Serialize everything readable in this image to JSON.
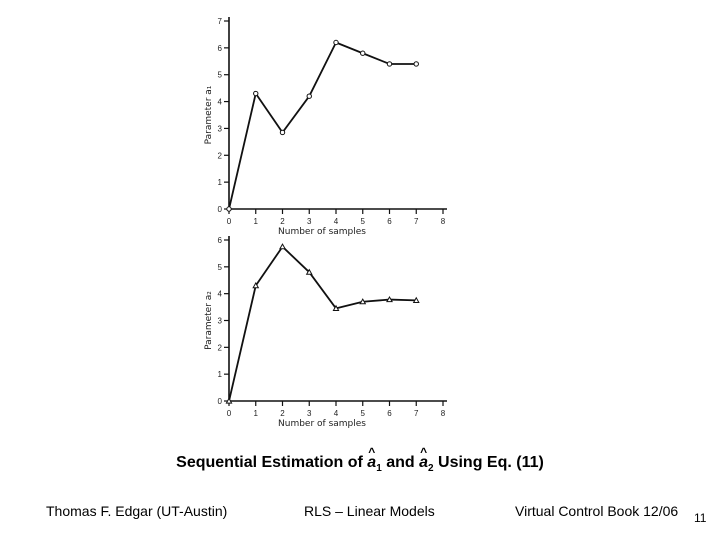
{
  "chart_data": [
    {
      "type": "line",
      "xlabel": "Number of samples",
      "ylabel": "Parameter a₁",
      "xlim": [
        0,
        8
      ],
      "ylim": [
        0,
        7
      ],
      "xticks": [
        0,
        1,
        2,
        3,
        4,
        5,
        6,
        7,
        8
      ],
      "yticks": [
        0,
        1,
        2,
        3,
        4,
        5,
        6,
        7
      ],
      "marker": "circle",
      "x": [
        0,
        1,
        2,
        3,
        4,
        5,
        6,
        7
      ],
      "y": [
        0,
        4.3,
        2.85,
        4.2,
        6.2,
        5.8,
        5.4,
        5.4
      ]
    },
    {
      "type": "line",
      "xlabel": "Number of samples",
      "ylabel": "Parameter a₂",
      "xlim": [
        0,
        8
      ],
      "ylim": [
        0,
        6
      ],
      "xticks": [
        0,
        1,
        2,
        3,
        4,
        5,
        6,
        7,
        8
      ],
      "yticks": [
        0,
        1,
        2,
        3,
        4,
        5,
        6
      ],
      "marker": "triangle",
      "x": [
        0,
        1,
        2,
        3,
        4,
        5,
        6,
        7
      ],
      "y": [
        0,
        4.3,
        5.75,
        4.8,
        3.45,
        3.7,
        3.78,
        3.75
      ]
    }
  ],
  "caption": {
    "prefix": "Sequential Estimation of ",
    "a1_letter": "a",
    "a1_sub": "1",
    "middle": " and ",
    "a2_letter": "a",
    "a2_sub": "2",
    "suffix": " Using Eq. (11)"
  },
  "footer": {
    "author": "Thomas F. Edgar (UT-Austin)",
    "topic": "RLS – Linear Models",
    "source": "Virtual Control Book 12/06",
    "page": "11"
  }
}
